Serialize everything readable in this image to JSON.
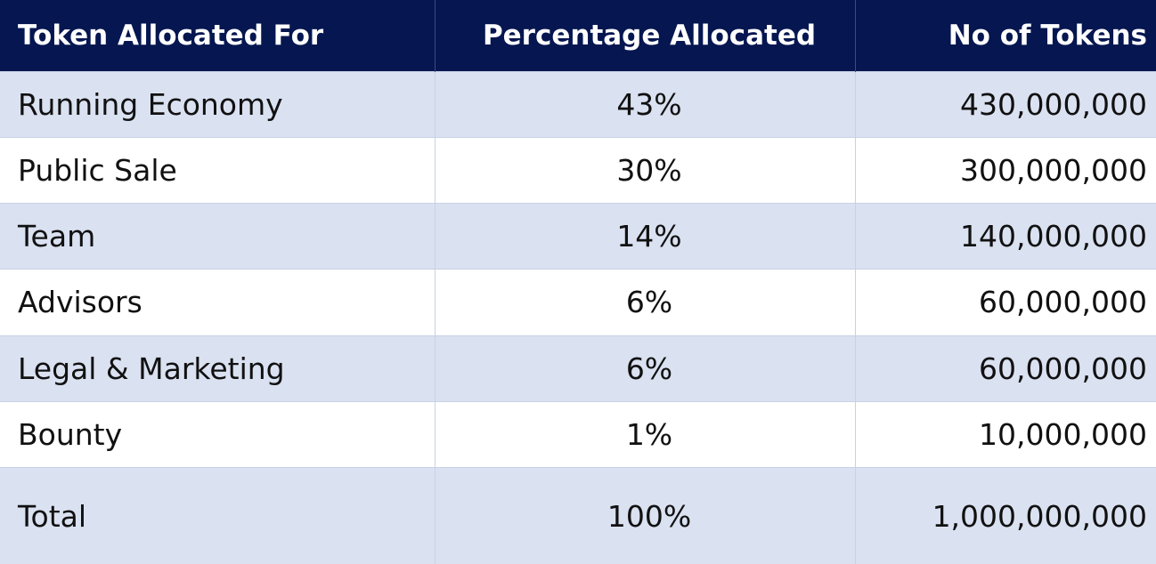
{
  "colors": {
    "header_bg": "#051650",
    "band_bg": "#dae1f1"
  },
  "header": {
    "col1": "Token Allocated For",
    "col2": "Percentage Allocated",
    "col3": "No of Tokens"
  },
  "rows": [
    {
      "label": "Running Economy",
      "percent": "43%",
      "tokens": "430,000,000"
    },
    {
      "label": "Public Sale",
      "percent": "30%",
      "tokens": "300,000,000"
    },
    {
      "label": "Team",
      "percent": "14%",
      "tokens": "140,000,000"
    },
    {
      "label": "Advisors",
      "percent": "6%",
      "tokens": "60,000,000"
    },
    {
      "label": "Legal & Marketing",
      "percent": "6%",
      "tokens": "60,000,000"
    },
    {
      "label": "Bounty",
      "percent": "1%",
      "tokens": "10,000,000"
    }
  ],
  "total": {
    "label": "Total",
    "percent": "100%",
    "tokens": "1,000,000,000"
  }
}
